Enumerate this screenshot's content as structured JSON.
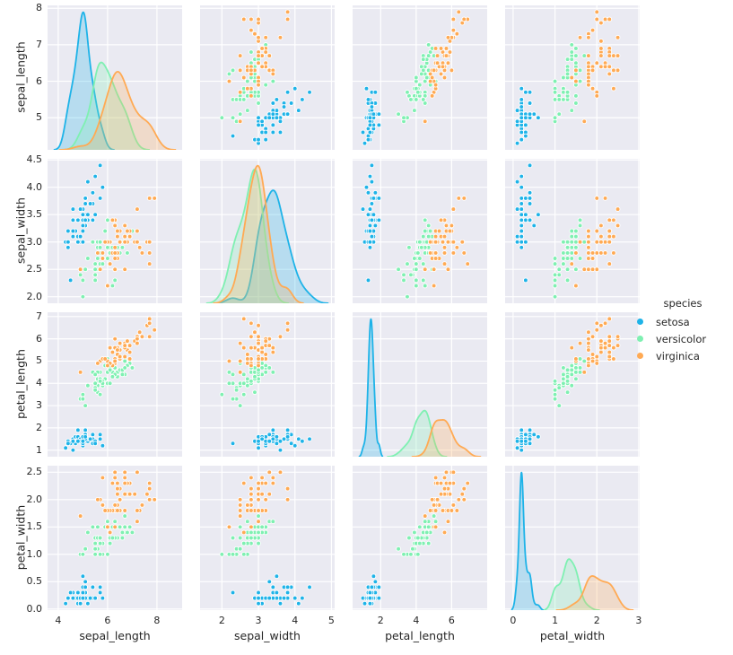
{
  "figure": {
    "background": "#ffffff",
    "panel_background": "#eaeaf2",
    "grid_color": "#ffffff",
    "text_color": "#262626"
  },
  "legend": {
    "title": "species",
    "entries": [
      {
        "label": "setosa",
        "color": "#1eb3e8"
      },
      {
        "label": "versicolor",
        "color": "#7ff0b2"
      },
      {
        "label": "virginica",
        "color": "#ffaa54"
      }
    ]
  },
  "chart_data": {
    "type": "scatter",
    "subtype": "pairplot",
    "diagonal": "kde",
    "hue": "species",
    "grid": true,
    "legend_position": "center right",
    "variables": [
      "sepal_length",
      "sepal_width",
      "petal_length",
      "petal_width"
    ],
    "species": [
      "setosa",
      "versicolor",
      "virginica"
    ],
    "palette": {
      "setosa": "#1eb3e8",
      "versicolor": "#7ff0b2",
      "virginica": "#ffaa54"
    },
    "x_tick_labels": {
      "sepal_length": [
        "4",
        "6",
        "8"
      ],
      "sepal_width": [
        "2",
        "3",
        "4",
        "5"
      ],
      "petal_length": [
        "2",
        "4",
        "6"
      ],
      "petal_width": [
        "0",
        "1",
        "2",
        "3"
      ]
    },
    "y_tick_labels": {
      "sepal_length": [
        "5",
        "6",
        "7",
        "8"
      ],
      "sepal_width": [
        "2.0",
        "2.5",
        "3.0",
        "3.5",
        "4.0",
        "4.5"
      ],
      "petal_length": [
        "1",
        "2",
        "3",
        "4",
        "5",
        "6",
        "7"
      ],
      "petal_width": [
        "0.0",
        "0.5",
        "1.0",
        "1.5",
        "2.0",
        "2.5"
      ]
    },
    "data": {
      "setosa": {
        "sepal_length": [
          5.1,
          4.9,
          4.7,
          4.6,
          5.0,
          5.4,
          4.6,
          5.0,
          4.4,
          4.9,
          5.4,
          4.8,
          4.8,
          4.3,
          5.8,
          5.7,
          5.4,
          5.1,
          5.7,
          5.1,
          5.4,
          5.1,
          4.6,
          5.1,
          4.8,
          5.0,
          5.0,
          5.2,
          5.2,
          4.7,
          4.8,
          5.4,
          5.2,
          5.5,
          4.9,
          5.0,
          5.5,
          4.9,
          4.4,
          5.1,
          5.0,
          4.5,
          4.4,
          5.0,
          5.1,
          4.8,
          5.1,
          4.6,
          5.3,
          5.0
        ],
        "sepal_width": [
          3.5,
          3.0,
          3.2,
          3.1,
          3.6,
          3.9,
          3.4,
          3.4,
          2.9,
          3.1,
          3.7,
          3.4,
          3.0,
          3.0,
          4.0,
          4.4,
          3.9,
          3.5,
          3.8,
          3.8,
          3.4,
          3.7,
          3.6,
          3.3,
          3.4,
          3.0,
          3.4,
          3.5,
          3.4,
          3.2,
          3.1,
          3.4,
          4.1,
          4.2,
          3.1,
          3.2,
          3.5,
          3.6,
          3.0,
          3.4,
          3.5,
          2.3,
          3.2,
          3.5,
          3.8,
          3.0,
          3.8,
          3.2,
          3.7,
          3.3
        ],
        "petal_length": [
          1.4,
          1.4,
          1.3,
          1.5,
          1.4,
          1.7,
          1.4,
          1.5,
          1.4,
          1.5,
          1.5,
          1.6,
          1.4,
          1.1,
          1.2,
          1.5,
          1.3,
          1.4,
          1.7,
          1.5,
          1.7,
          1.5,
          1.0,
          1.7,
          1.9,
          1.6,
          1.6,
          1.5,
          1.4,
          1.6,
          1.6,
          1.5,
          1.5,
          1.4,
          1.5,
          1.2,
          1.3,
          1.4,
          1.3,
          1.5,
          1.3,
          1.3,
          1.3,
          1.6,
          1.9,
          1.4,
          1.6,
          1.4,
          1.5,
          1.4
        ],
        "petal_width": [
          0.2,
          0.2,
          0.2,
          0.2,
          0.2,
          0.4,
          0.3,
          0.2,
          0.2,
          0.1,
          0.2,
          0.2,
          0.1,
          0.1,
          0.2,
          0.4,
          0.4,
          0.3,
          0.3,
          0.3,
          0.2,
          0.4,
          0.2,
          0.5,
          0.2,
          0.2,
          0.4,
          0.2,
          0.2,
          0.2,
          0.2,
          0.4,
          0.1,
          0.2,
          0.2,
          0.2,
          0.2,
          0.1,
          0.2,
          0.2,
          0.3,
          0.3,
          0.2,
          0.6,
          0.4,
          0.3,
          0.2,
          0.2,
          0.2,
          0.2
        ]
      },
      "versicolor": {
        "sepal_length": [
          7.0,
          6.4,
          6.9,
          5.5,
          6.5,
          5.7,
          6.3,
          4.9,
          6.6,
          5.2,
          5.0,
          5.9,
          6.0,
          6.1,
          5.6,
          6.7,
          5.6,
          5.8,
          6.2,
          5.6,
          5.9,
          6.1,
          6.3,
          6.1,
          6.4,
          6.6,
          6.8,
          6.7,
          6.0,
          5.7,
          5.5,
          5.5,
          5.8,
          6.0,
          5.4,
          6.0,
          6.7,
          6.3,
          5.6,
          5.5,
          5.5,
          6.1,
          5.8,
          5.0,
          5.6,
          5.7,
          5.7,
          6.2,
          5.1,
          5.7
        ],
        "sepal_width": [
          3.2,
          3.2,
          3.1,
          2.3,
          2.8,
          2.8,
          3.3,
          2.4,
          2.9,
          2.7,
          2.0,
          3.0,
          2.2,
          2.9,
          2.9,
          3.1,
          3.0,
          2.7,
          2.2,
          2.5,
          3.2,
          2.8,
          2.5,
          2.8,
          2.9,
          3.0,
          2.8,
          3.0,
          2.9,
          2.6,
          2.4,
          2.4,
          2.7,
          2.7,
          3.0,
          3.4,
          3.1,
          2.3,
          3.0,
          2.5,
          2.6,
          3.0,
          2.6,
          2.3,
          2.7,
          3.0,
          2.9,
          2.9,
          2.5,
          2.8
        ],
        "petal_length": [
          4.7,
          4.5,
          4.9,
          4.0,
          4.6,
          4.5,
          4.7,
          3.3,
          4.6,
          3.9,
          3.5,
          4.2,
          4.0,
          4.7,
          3.6,
          4.4,
          4.5,
          4.1,
          4.5,
          3.9,
          4.8,
          4.0,
          4.9,
          4.7,
          4.3,
          4.4,
          4.8,
          5.0,
          4.5,
          3.5,
          3.8,
          3.7,
          3.9,
          5.1,
          4.5,
          4.5,
          4.7,
          4.4,
          4.1,
          4.0,
          4.4,
          4.6,
          4.0,
          3.3,
          4.2,
          4.2,
          4.2,
          4.3,
          3.0,
          4.1
        ],
        "petal_width": [
          1.4,
          1.5,
          1.5,
          1.3,
          1.5,
          1.3,
          1.6,
          1.0,
          1.3,
          1.4,
          1.0,
          1.5,
          1.0,
          1.4,
          1.3,
          1.4,
          1.5,
          1.0,
          1.5,
          1.1,
          1.8,
          1.3,
          1.5,
          1.2,
          1.3,
          1.4,
          1.4,
          1.7,
          1.5,
          1.0,
          1.1,
          1.0,
          1.2,
          1.6,
          1.5,
          1.6,
          1.5,
          1.3,
          1.3,
          1.3,
          1.2,
          1.4,
          1.2,
          1.0,
          1.3,
          1.2,
          1.3,
          1.3,
          1.1,
          1.3
        ]
      },
      "virginica": {
        "sepal_length": [
          6.3,
          5.8,
          7.1,
          6.3,
          6.5,
          7.6,
          4.9,
          7.3,
          6.7,
          7.2,
          6.5,
          6.4,
          6.8,
          5.7,
          5.8,
          6.4,
          6.5,
          7.7,
          7.7,
          6.0,
          6.9,
          5.6,
          7.7,
          6.3,
          6.7,
          7.2,
          6.2,
          6.1,
          6.4,
          7.2,
          7.4,
          7.9,
          6.4,
          6.3,
          6.1,
          7.7,
          6.3,
          6.4,
          6.0,
          6.9,
          6.7,
          6.9,
          5.8,
          6.8,
          6.7,
          6.7,
          6.3,
          6.5,
          6.2,
          5.9
        ],
        "sepal_width": [
          3.3,
          2.7,
          3.0,
          2.9,
          3.0,
          3.0,
          2.5,
          2.9,
          2.5,
          3.6,
          3.2,
          2.7,
          3.0,
          2.5,
          2.8,
          3.2,
          3.0,
          3.8,
          2.6,
          2.2,
          3.2,
          2.8,
          2.8,
          2.7,
          3.3,
          3.2,
          2.8,
          3.0,
          2.8,
          3.0,
          2.8,
          3.8,
          2.8,
          2.8,
          2.6,
          3.0,
          3.4,
          3.1,
          3.0,
          3.1,
          3.1,
          3.1,
          2.7,
          3.2,
          3.3,
          3.0,
          2.5,
          3.0,
          3.4,
          3.0
        ],
        "petal_length": [
          6.0,
          5.1,
          5.9,
          5.6,
          5.8,
          6.6,
          4.5,
          6.3,
          5.8,
          6.1,
          5.1,
          5.3,
          5.5,
          5.0,
          5.1,
          5.3,
          5.5,
          6.7,
          6.9,
          5.0,
          5.7,
          4.9,
          6.7,
          4.9,
          5.7,
          6.0,
          4.8,
          4.9,
          5.6,
          5.8,
          6.1,
          6.4,
          5.6,
          5.1,
          5.6,
          6.1,
          5.6,
          5.5,
          4.8,
          5.4,
          5.6,
          5.1,
          5.1,
          5.9,
          5.7,
          5.2,
          5.0,
          5.2,
          5.4,
          5.1
        ],
        "petal_width": [
          2.5,
          1.9,
          2.1,
          1.8,
          2.2,
          2.1,
          1.7,
          1.8,
          1.8,
          2.5,
          2.0,
          1.9,
          2.1,
          2.0,
          2.4,
          2.3,
          1.8,
          2.2,
          2.3,
          1.5,
          2.3,
          2.0,
          2.0,
          1.8,
          2.1,
          1.8,
          1.8,
          1.8,
          2.1,
          1.6,
          1.9,
          2.0,
          2.2,
          1.5,
          1.4,
          2.3,
          2.4,
          1.8,
          1.8,
          2.1,
          2.4,
          2.3,
          1.9,
          2.3,
          2.5,
          2.3,
          1.9,
          2.0,
          2.3,
          1.8
        ]
      }
    }
  }
}
